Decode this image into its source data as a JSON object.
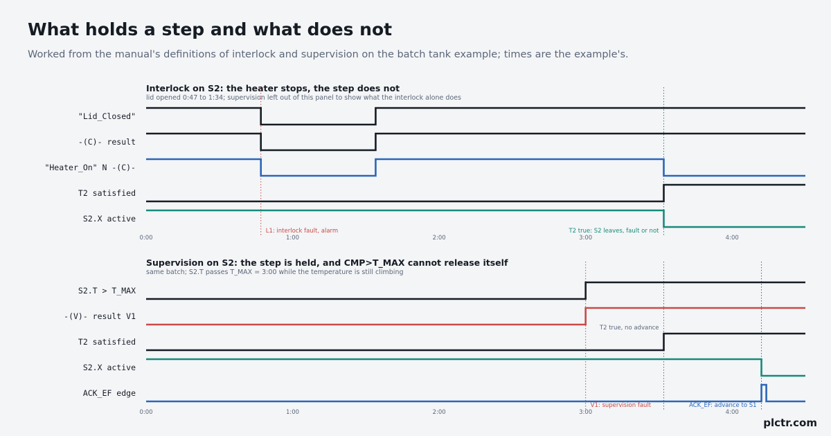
{
  "title": "What holds a step and what does not",
  "subtitle": "Worked from the manual's definitions of interlock and supervision on the batch tank example; times are the example's.",
  "brand": "plctr.com",
  "colors": {
    "dark": "#161c24",
    "blue": "#2a66b8",
    "teal": "#178a7a",
    "red": "#c94a45",
    "grey_text": "#5b6778"
  },
  "chart_data": [
    {
      "type": "line",
      "subtype": "timing-diagram",
      "title": "Interlock on S2: the heater stops, the step does not",
      "subtitle": "lid opened 0:47 to 1:34; supervision left out of this panel to show what the interlock alone does",
      "x_unit": "seconds",
      "xlim": [
        0,
        270
      ],
      "x_ticks": [
        0,
        60,
        120,
        180,
        240
      ],
      "x_tick_labels": [
        "0:00",
        "1:00",
        "2:00",
        "3:00",
        "4:00"
      ],
      "series": [
        {
          "name": "\"Lid_Closed\"",
          "color": "#161c24",
          "steps": [
            [
              0,
              1
            ],
            [
              47,
              0
            ],
            [
              94,
              1
            ]
          ]
        },
        {
          "name": "-(C)- result",
          "color": "#161c24",
          "steps": [
            [
              0,
              1
            ],
            [
              47,
              0
            ],
            [
              94,
              1
            ]
          ]
        },
        {
          "name": "\"Heater_On\" N -(C)-",
          "color": "#2a66b8",
          "steps": [
            [
              0,
              1
            ],
            [
              47,
              0
            ],
            [
              94,
              1
            ],
            [
              212,
              0
            ]
          ]
        },
        {
          "name": "T2 satisfied",
          "color": "#161c24",
          "steps": [
            [
              0,
              0
            ],
            [
              212,
              1
            ]
          ]
        },
        {
          "name": "S2.X active",
          "color": "#178a7a",
          "steps": [
            [
              0,
              1
            ],
            [
              212,
              0
            ]
          ]
        }
      ],
      "markers": [
        {
          "x": 47,
          "color": "#c94a45",
          "label": "L1: interlock fault, alarm",
          "align": "right-of"
        },
        {
          "x": 212,
          "color": "#178a7a",
          "label": "T2 true: S2 leaves, fault or not",
          "align": "left-of"
        }
      ]
    },
    {
      "type": "line",
      "subtype": "timing-diagram",
      "title": "Supervision on S2: the step is held, and CMP>T_MAX cannot release itself",
      "subtitle": "same batch; S2.T passes T_MAX = 3:00 while the temperature is still climbing",
      "x_unit": "seconds",
      "xlim": [
        0,
        270
      ],
      "x_ticks": [
        0,
        60,
        120,
        180,
        240
      ],
      "x_tick_labels": [
        "0:00",
        "1:00",
        "2:00",
        "3:00",
        "4:00"
      ],
      "series": [
        {
          "name": "S2.T > T_MAX",
          "color": "#161c24",
          "steps": [
            [
              0,
              0
            ],
            [
              180,
              1
            ]
          ]
        },
        {
          "name": "-(V)- result  V1",
          "color": "#c94a45",
          "steps": [
            [
              0,
              0
            ],
            [
              180,
              1
            ]
          ]
        },
        {
          "name": "T2 satisfied",
          "color": "#161c24",
          "steps": [
            [
              0,
              0
            ],
            [
              212,
              1
            ]
          ]
        },
        {
          "name": "S2.X active",
          "color": "#178a7a",
          "steps": [
            [
              0,
              1
            ],
            [
              252,
              0
            ]
          ]
        },
        {
          "name": "ACK_EF edge",
          "color": "#2a66b8",
          "steps": [
            [
              0,
              0
            ],
            [
              252,
              1
            ],
            [
              254,
              0
            ]
          ]
        }
      ],
      "markers": [
        {
          "x": 180,
          "color": "#c94a45",
          "label": "V1: supervision fault",
          "align": "right-of"
        },
        {
          "x": 212,
          "color": "#5b6778",
          "label": "T2 true, no advance",
          "align": "left-of"
        },
        {
          "x": 252,
          "color": "#2a66b8",
          "label": "ACK_EF: advance to S1",
          "align": "left-of"
        }
      ]
    }
  ]
}
